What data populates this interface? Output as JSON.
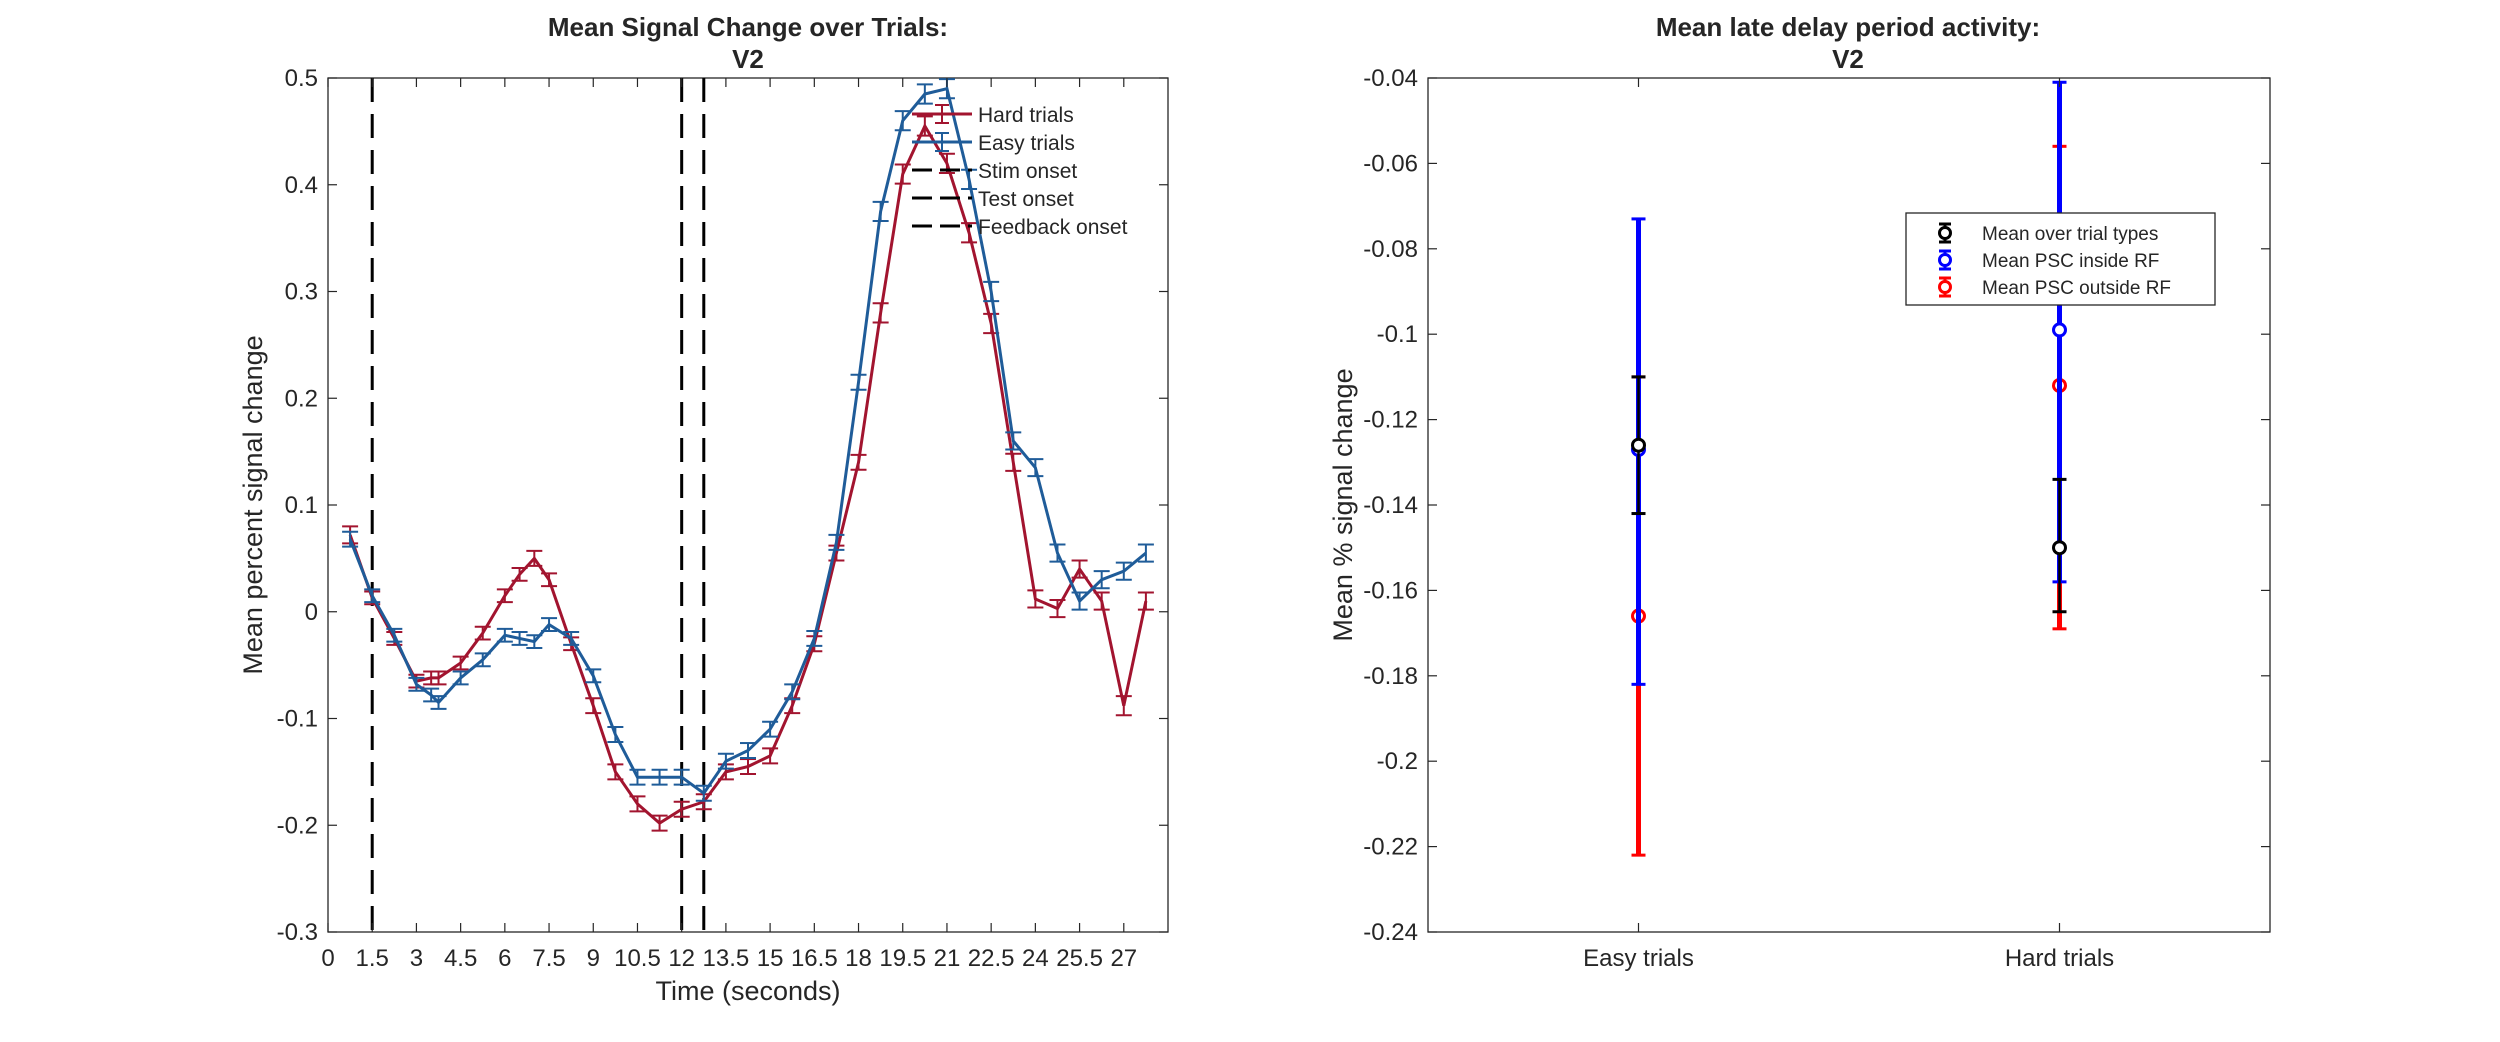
{
  "figure": {
    "background": "#ffffff",
    "axis_color": "#262626"
  },
  "chart_data": [
    {
      "type": "line",
      "title": "Mean Signal Change over Trials:",
      "subtitle": "V2",
      "xlabel": "Time (seconds)",
      "ylabel": "Mean percent signal change",
      "xlim": [
        0,
        28.5
      ],
      "ylim": [
        -0.3,
        0.5
      ],
      "xticks": [
        0,
        1.5,
        3,
        4.5,
        6,
        7.5,
        9,
        10.5,
        12,
        13.5,
        15,
        16.5,
        18,
        19.5,
        21,
        22.5,
        24,
        25.5,
        27
      ],
      "xtick_labels": [
        "0",
        "1.5",
        "3",
        "4.5",
        "6",
        "7.5",
        "9",
        "10.5",
        "12",
        "13.5",
        "15",
        "16.5",
        "18",
        "19.5",
        "21",
        "22.5",
        "24",
        "25.5",
        "27"
      ],
      "yticks": [
        -0.3,
        -0.2,
        -0.1,
        0,
        0.1,
        0.2,
        0.3,
        0.4,
        0.5
      ],
      "ytick_labels": [
        "-0.3",
        "-0.2",
        "-0.1",
        "0",
        "0.1",
        "0.2",
        "0.3",
        "0.4",
        "0.5"
      ],
      "legend_position": "top-right",
      "x": [
        0.75,
        1.5,
        2.25,
        3,
        3.5,
        3.75,
        4.5,
        5.25,
        6,
        6.5,
        7,
        7.5,
        8.25,
        9,
        9.75,
        10.5,
        11.25,
        12,
        12.75,
        13.5,
        14.25,
        15,
        15.75,
        16.5,
        17.25,
        18,
        18.75,
        19.5,
        20.25,
        21,
        21.75,
        22.5,
        23.25,
        24,
        24.75,
        25.5,
        26.25,
        27,
        27.75
      ],
      "series": [
        {
          "name": "Hard trials",
          "color": "#a2142f",
          "values": [
            0.072,
            0.013,
            -0.025,
            -0.065,
            -0.062,
            -0.062,
            -0.048,
            -0.02,
            0.015,
            0.035,
            0.05,
            0.03,
            -0.03,
            -0.088,
            -0.15,
            -0.18,
            -0.198,
            -0.185,
            -0.178,
            -0.15,
            -0.145,
            -0.135,
            -0.088,
            -0.03,
            0.055,
            0.14,
            0.28,
            0.41,
            0.455,
            0.42,
            0.355,
            0.27,
            0.14,
            0.012,
            0.003,
            0.04,
            0.01,
            -0.088,
            0.01
          ],
          "errors": [
            0.008,
            0.006,
            0.006,
            0.006,
            0.006,
            0.006,
            0.006,
            0.006,
            0.006,
            0.006,
            0.007,
            0.006,
            0.006,
            0.007,
            0.007,
            0.007,
            0.007,
            0.007,
            0.007,
            0.007,
            0.007,
            0.007,
            0.007,
            0.007,
            0.007,
            0.007,
            0.009,
            0.009,
            0.009,
            0.009,
            0.009,
            0.009,
            0.008,
            0.008,
            0.008,
            0.008,
            0.008,
            0.009,
            0.008
          ]
        },
        {
          "name": "Easy trials",
          "color": "#1f5c99",
          "values": [
            0.068,
            0.015,
            -0.022,
            -0.068,
            -0.078,
            -0.085,
            -0.062,
            -0.045,
            -0.022,
            -0.025,
            -0.028,
            -0.012,
            -0.025,
            -0.06,
            -0.115,
            -0.155,
            -0.155,
            -0.155,
            -0.17,
            -0.14,
            -0.13,
            -0.11,
            -0.075,
            -0.025,
            0.065,
            0.215,
            0.375,
            0.46,
            0.485,
            0.49,
            0.405,
            0.3,
            0.16,
            0.135,
            0.055,
            0.01,
            0.03,
            0.038,
            0.055
          ],
          "errors": [
            0.007,
            0.006,
            0.006,
            0.006,
            0.006,
            0.006,
            0.006,
            0.006,
            0.006,
            0.006,
            0.006,
            0.006,
            0.006,
            0.006,
            0.007,
            0.007,
            0.007,
            0.007,
            0.007,
            0.007,
            0.007,
            0.007,
            0.007,
            0.007,
            0.007,
            0.007,
            0.009,
            0.009,
            0.009,
            0.009,
            0.009,
            0.009,
            0.008,
            0.008,
            0.008,
            0.008,
            0.008,
            0.008,
            0.008
          ]
        }
      ],
      "vlines": [
        {
          "name": "Stim onset",
          "x": 1.5
        },
        {
          "name": "Test onset",
          "x": 12
        },
        {
          "name": "Feedback onset",
          "x": 12.75
        }
      ]
    },
    {
      "type": "scatter",
      "title": "Mean late delay period activity:",
      "subtitle": "V2",
      "xlabel": "",
      "ylabel": "Mean % signal change",
      "categories": [
        "Easy trials",
        "Hard trials"
      ],
      "ylim": [
        -0.24,
        -0.04
      ],
      "yticks": [
        -0.24,
        -0.22,
        -0.2,
        -0.18,
        -0.16,
        -0.14,
        -0.12,
        -0.1,
        -0.08,
        -0.06,
        -0.04
      ],
      "ytick_labels": [
        "-0.24",
        "-0.22",
        "-0.2",
        "-0.18",
        "-0.16",
        "-0.14",
        "-0.12",
        "-0.1",
        "-0.08",
        "-0.06",
        "-0.04"
      ],
      "legend_position": "top-right",
      "series": [
        {
          "name": "Mean over trial types",
          "color": "#000000",
          "values": [
            -0.126,
            -0.15
          ],
          "lower": [
            -0.142,
            -0.165
          ],
          "upper": [
            -0.11,
            -0.134
          ]
        },
        {
          "name": "Mean PSC inside RF",
          "color": "#0000ff",
          "values": [
            -0.127,
            -0.099
          ],
          "lower": [
            -0.182,
            -0.158
          ],
          "upper": [
            -0.073,
            -0.041
          ]
        },
        {
          "name": "Mean PSC outside RF",
          "color": "#ff0000",
          "values": [
            -0.166,
            -0.112
          ],
          "lower": [
            -0.222,
            -0.169
          ],
          "upper": [
            -0.11,
            -0.056
          ]
        }
      ]
    }
  ]
}
